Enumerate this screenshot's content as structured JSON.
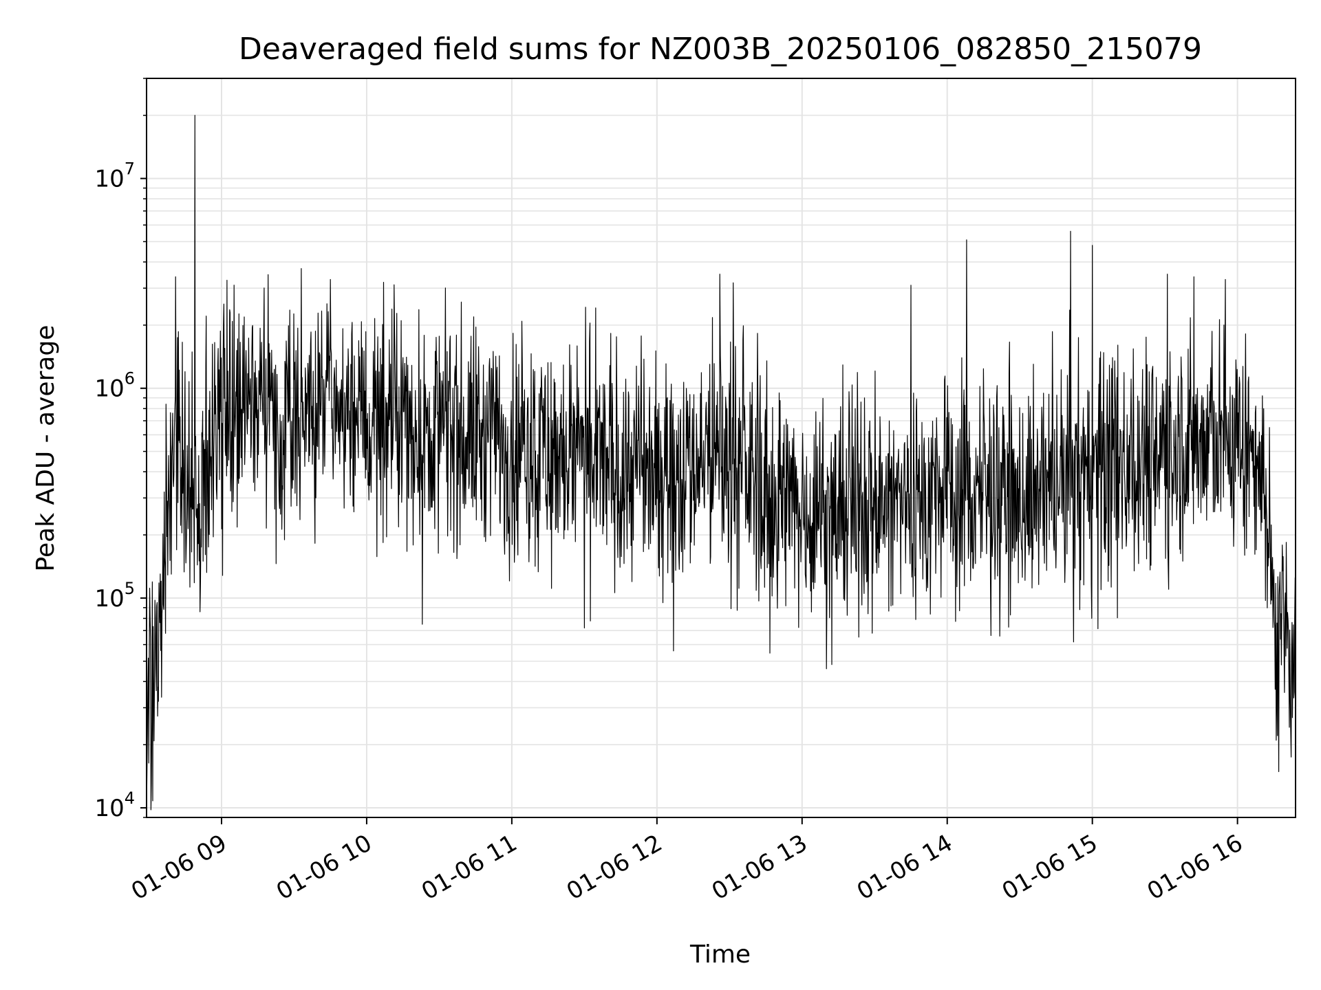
{
  "chart_data": {
    "type": "line",
    "title": "Deaveraged field sums for NZ003B_20250106_082850_215079",
    "xlabel": "Time",
    "ylabel": "Peak ADU - average",
    "x_range": [
      "01-06 08:29",
      "01-06 16:24"
    ],
    "y_scale": "log",
    "ylim": [
      9000,
      30000000
    ],
    "grid": true,
    "line_color": "#000000",
    "x_ticks": [
      {
        "label": "01-06 09",
        "hour": 9
      },
      {
        "label": "01-06 10",
        "hour": 10
      },
      {
        "label": "01-06 11",
        "hour": 11
      },
      {
        "label": "01-06 12",
        "hour": 12
      },
      {
        "label": "01-06 13",
        "hour": 13
      },
      {
        "label": "01-06 14",
        "hour": 14
      },
      {
        "label": "01-06 15",
        "hour": 15
      },
      {
        "label": "01-06 16",
        "hour": 16
      }
    ],
    "y_ticks": [
      {
        "label": "10",
        "exp": "4",
        "value": 10000
      },
      {
        "label": "10",
        "exp": "5",
        "value": 100000
      },
      {
        "label": "10",
        "exp": "6",
        "value": 1000000
      },
      {
        "label": "10",
        "exp": "7",
        "value": 10000000
      }
    ],
    "series": [
      {
        "approx_level": [
          [
            "01-06 08:29",
            30000
          ],
          [
            "01-06 08:35",
            90000
          ],
          [
            "01-06 08:40",
            500000
          ],
          [
            "01-06 08:45",
            350000
          ],
          [
            "01-06 08:50",
            250000
          ],
          [
            "01-06 08:55",
            600000
          ],
          [
            "01-06 09:00",
            750000
          ],
          [
            "01-06 09:30",
            750000
          ],
          [
            "01-06 10:00",
            700000
          ],
          [
            "01-06 10:30",
            650000
          ],
          [
            "01-06 11:00",
            550000
          ],
          [
            "01-06 11:30",
            450000
          ],
          [
            "01-06 12:00",
            400000
          ],
          [
            "01-06 12:30",
            500000
          ],
          [
            "01-06 12:45",
            300000
          ],
          [
            "01-06 13:00",
            270000
          ],
          [
            "01-06 13:30",
            270000
          ],
          [
            "01-06 14:00",
            320000
          ],
          [
            "01-06 14:30",
            300000
          ],
          [
            "01-06 15:00",
            380000
          ],
          [
            "01-06 15:30",
            550000
          ],
          [
            "01-06 16:00",
            550000
          ],
          [
            "01-06 16:10",
            450000
          ],
          [
            "01-06 16:15",
            80000
          ],
          [
            "01-06 16:24",
            40000
          ]
        ],
        "peaks": [
          [
            "01-06 08:31",
            13000
          ],
          [
            "01-06 08:41",
            3400000
          ],
          [
            "01-06 08:49",
            20000000
          ],
          [
            "01-06 09:45",
            3300000
          ],
          [
            "01-06 10:07",
            3200000
          ],
          [
            "01-06 10:23",
            75000
          ],
          [
            "01-06 11:30",
            72000
          ],
          [
            "01-06 12:26",
            3500000
          ],
          [
            "01-06 13:29",
            68000
          ],
          [
            "01-06 13:45",
            3100000
          ],
          [
            "01-06 14:08",
            5100000
          ],
          [
            "01-06 14:51",
            5600000
          ],
          [
            "01-06 15:00",
            4800000
          ],
          [
            "01-06 15:31",
            3500000
          ],
          [
            "01-06 15:42",
            3400000
          ],
          [
            "01-06 15:55",
            3300000
          ],
          [
            "01-06 16:16",
            21000
          ]
        ]
      }
    ]
  }
}
